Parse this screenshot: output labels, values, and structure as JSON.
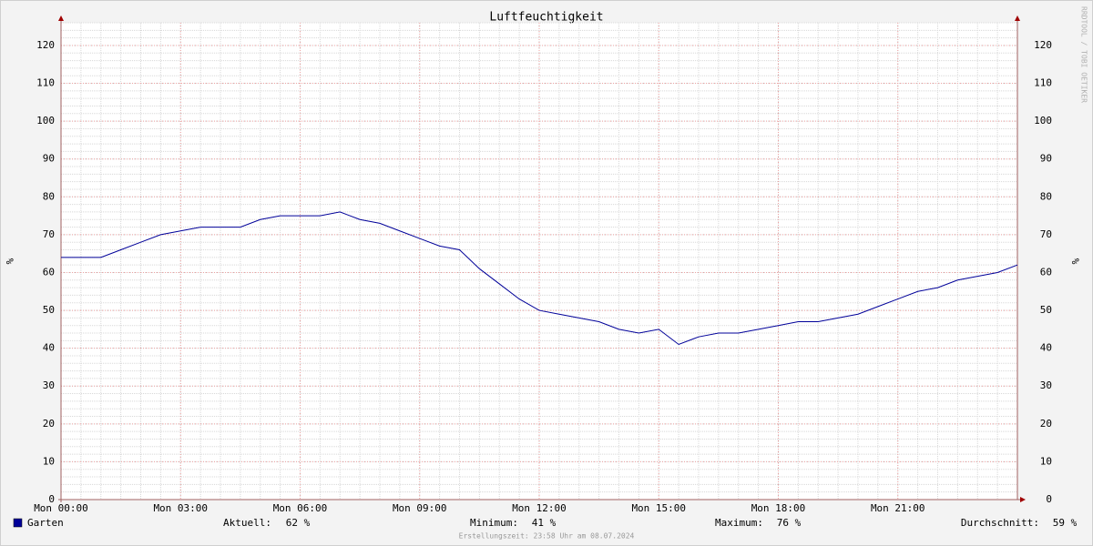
{
  "chart_data": {
    "type": "line",
    "title": "Luftfeuchtigkeit",
    "y_label": "%",
    "y2_label": "%",
    "x": [
      0,
      0.5,
      1,
      1.5,
      2,
      2.5,
      3,
      3.5,
      4,
      4.5,
      5,
      5.5,
      6,
      6.5,
      7,
      7.5,
      8,
      8.5,
      9,
      9.5,
      10,
      10.5,
      11,
      11.5,
      12,
      12.5,
      13,
      13.5,
      14,
      14.5,
      15,
      15.5,
      16,
      16.5,
      17,
      17.5,
      18,
      18.5,
      19,
      19.5,
      20,
      20.5,
      21,
      21.5,
      22,
      22.5,
      23,
      23.5,
      24
    ],
    "series": [
      {
        "name": "Garten",
        "color": "#000099",
        "values": [
          64,
          64,
          64,
          66,
          68,
          70,
          71,
          72,
          72,
          72,
          74,
          75,
          75,
          75,
          76,
          74,
          73,
          71,
          69,
          67,
          66,
          61,
          57,
          53,
          50,
          49,
          48,
          47,
          45,
          44,
          45,
          41,
          43,
          44,
          44,
          45,
          46,
          47,
          47,
          48,
          49,
          51,
          53,
          55,
          56,
          58,
          59,
          60,
          62
        ]
      }
    ],
    "xlim": [
      0,
      24
    ],
    "xticks": [
      {
        "value": 0,
        "label": "Mon 00:00"
      },
      {
        "value": 3,
        "label": "Mon 03:00"
      },
      {
        "value": 6,
        "label": "Mon 06:00"
      },
      {
        "value": 9,
        "label": "Mon 09:00"
      },
      {
        "value": 12,
        "label": "Mon 12:00"
      },
      {
        "value": 15,
        "label": "Mon 15:00"
      },
      {
        "value": 18,
        "label": "Mon 18:00"
      },
      {
        "value": 21,
        "label": "Mon 21:00"
      }
    ],
    "ylim": [
      0,
      126
    ],
    "yticks": [
      0,
      10,
      20,
      30,
      40,
      50,
      60,
      70,
      80,
      90,
      100,
      110,
      120
    ],
    "grid": true,
    "legend": {
      "stats": [
        [
          "Aktuell:",
          "62 %"
        ],
        [
          "Minimum:",
          "41 %"
        ],
        [
          "Maximum:",
          "76 %"
        ],
        [
          "Durchschnitt:",
          "59 %"
        ]
      ]
    },
    "footer": "Erstellungszeit: 23:58 Uhr am 08.07.2024",
    "watermark": "RRDTOOL / TOBI OETIKER"
  }
}
